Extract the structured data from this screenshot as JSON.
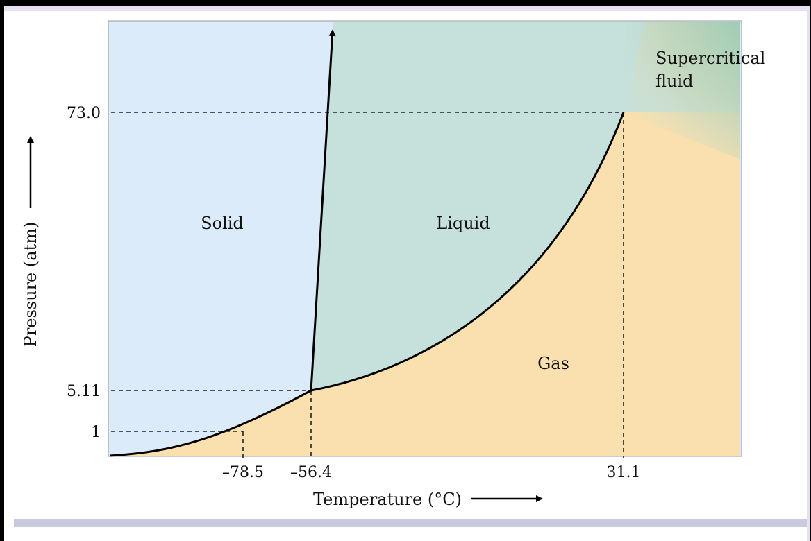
{
  "diagram": {
    "regions": {
      "solid": "Solid",
      "liquid": "Liquid",
      "gas": "Gas",
      "supercritical_line1": "Supercritical",
      "supercritical_line2": "fluid"
    },
    "y_axis": {
      "label": "Pressure (atm)",
      "ticks": [
        "73.0",
        "5.11",
        "1"
      ]
    },
    "x_axis": {
      "label": "Temperature (°C)",
      "ticks": [
        "–78.5",
        "–56.4",
        "31.1"
      ]
    },
    "colors": {
      "solid": "#dcebfa",
      "liquid": "#c6e1dc",
      "gas": "#f9e0ae",
      "supercritical": "#9fcdb6",
      "curve": "#000000"
    }
  }
}
